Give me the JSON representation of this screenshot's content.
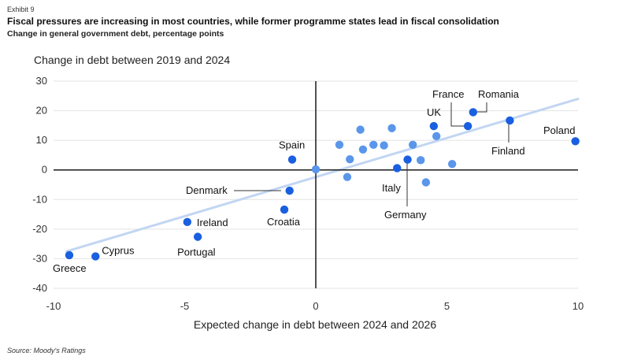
{
  "header": {
    "exhibit": "Exhibit 9",
    "title": "Fiscal pressures are increasing in most countries, while former programme states lead in fiscal consolidation",
    "subtitle": "Change in general government debt, percentage points"
  },
  "footer": {
    "source": "Source: Moody's Ratings"
  },
  "colors": {
    "highlight_point": "#1a5fe0",
    "other_point": "#5a96ea",
    "trendline": "#c2d6f2",
    "axis_zero": "#1a1a1a",
    "grid": "#e3e3e3"
  },
  "chart_data": {
    "type": "scatter",
    "xlabel": "Expected change in debt between 2024 and 2026",
    "ylabel": "Change in debt between 2019 and 2024",
    "xlim": [
      -10,
      10
    ],
    "ylim": [
      -40,
      30
    ],
    "xticks": [
      -10,
      -5,
      0,
      5,
      10
    ],
    "yticks": [
      30,
      20,
      10,
      0,
      -10,
      -20,
      -30,
      -40
    ],
    "tick_labels_x": [
      "-10",
      "-5",
      "0",
      "5",
      "10"
    ],
    "tick_labels_y": [
      "30",
      "20",
      "10",
      "0",
      "-10",
      "-20",
      "-30",
      "-40"
    ],
    "grid": "horizontal",
    "trendline": {
      "x": [
        -9.5,
        10
      ],
      "y": [
        -27.5,
        24
      ]
    },
    "highlighted": [
      {
        "name": "Greece",
        "x": -9.4,
        "y": -28.8
      },
      {
        "name": "Cyprus",
        "x": -8.4,
        "y": -29.2
      },
      {
        "name": "Ireland",
        "x": -4.9,
        "y": -17.6
      },
      {
        "name": "Portugal",
        "x": -4.5,
        "y": -22.6
      },
      {
        "name": "Denmark",
        "x": -1.0,
        "y": -7.0
      },
      {
        "name": "Croatia",
        "x": -1.2,
        "y": -13.4
      },
      {
        "name": "Spain",
        "x": -0.9,
        "y": 3.5
      },
      {
        "name": "Italy",
        "x": 3.1,
        "y": 0.6
      },
      {
        "name": "Germany",
        "x": 3.5,
        "y": 3.5
      },
      {
        "name": "UK",
        "x": 4.5,
        "y": 14.8
      },
      {
        "name": "France",
        "x": 5.8,
        "y": 14.8
      },
      {
        "name": "Romania",
        "x": 6.0,
        "y": 19.5
      },
      {
        "name": "Finland",
        "x": 7.4,
        "y": 16.7
      },
      {
        "name": "Poland",
        "x": 9.9,
        "y": 9.7
      }
    ],
    "others": [
      {
        "x": 0.0,
        "y": 0.2
      },
      {
        "x": 0.9,
        "y": 8.5
      },
      {
        "x": 1.2,
        "y": -2.4
      },
      {
        "x": 1.3,
        "y": 3.6
      },
      {
        "x": 1.7,
        "y": 13.6
      },
      {
        "x": 1.8,
        "y": 6.9
      },
      {
        "x": 2.2,
        "y": 8.5
      },
      {
        "x": 2.6,
        "y": 8.3
      },
      {
        "x": 2.9,
        "y": 14.1
      },
      {
        "x": 3.7,
        "y": 8.5
      },
      {
        "x": 4.0,
        "y": 3.3
      },
      {
        "x": 4.2,
        "y": -4.2
      },
      {
        "x": 4.6,
        "y": 11.4
      },
      {
        "x": 5.2,
        "y": 2.0
      }
    ]
  }
}
